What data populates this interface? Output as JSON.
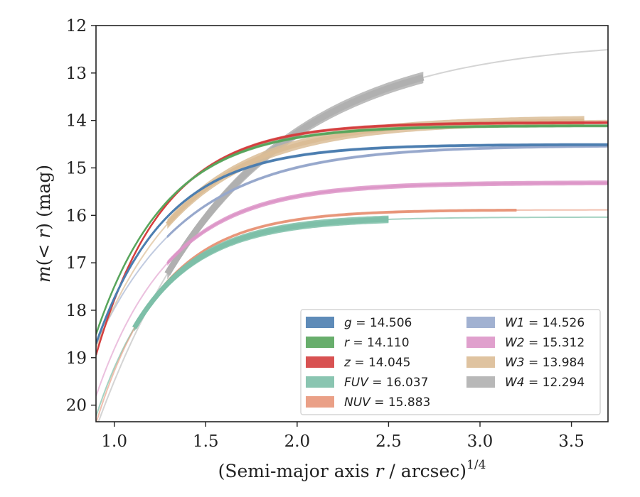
{
  "chart_data": {
    "type": "line",
    "xlabel_main": "(Semi-major axis ",
    "xlabel_var": "r",
    "xlabel_rest": " / arcsec)",
    "xlabel_sup": "1/4",
    "ylabel_main": "m",
    "ylabel_paren": "(< ",
    "ylabel_var": "r",
    "ylabel_rest": ") (mag)",
    "xlim": [
      0.9,
      3.7
    ],
    "ylim": [
      20.35,
      12.0
    ],
    "y_inverted": true,
    "grid": false,
    "legend_position": "lower-right",
    "x_ticks": [
      {
        "v": 1.0,
        "label": "1.0"
      },
      {
        "v": 1.5,
        "label": "1.5"
      },
      {
        "v": 2.0,
        "label": "2.0"
      },
      {
        "v": 2.5,
        "label": "2.5"
      },
      {
        "v": 3.0,
        "label": "3.0"
      },
      {
        "v": 3.5,
        "label": "3.5"
      }
    ],
    "y_ticks": [
      {
        "v": 12,
        "label": "12"
      },
      {
        "v": 13,
        "label": "13"
      },
      {
        "v": 14,
        "label": "14"
      },
      {
        "v": 15,
        "label": "15"
      },
      {
        "v": 16,
        "label": "16"
      },
      {
        "v": 17,
        "label": "17"
      },
      {
        "v": 18,
        "label": "18"
      },
      {
        "v": 19,
        "label": "19"
      },
      {
        "v": 20,
        "label": "20"
      }
    ],
    "series": [
      {
        "key": "g",
        "legend_var": "g",
        "legend_value": " = 14.506",
        "color": "#4c7eb0",
        "data_width": 3,
        "model_width": 2,
        "data_xmax": 3.7,
        "data_band": 0.03,
        "model_opacity": 0.4,
        "asym": 14.506,
        "A": 4.2,
        "k": 2.6
      },
      {
        "key": "r",
        "legend_var": "r",
        "legend_value": " = 14.110",
        "color": "#58a55c",
        "data_width": 2.5,
        "model_width": 2,
        "data_xmax": 3.7,
        "data_band": 0.03,
        "model_opacity": 0.4,
        "asym": 14.11,
        "A": 4.4,
        "k": 2.6
      },
      {
        "key": "z",
        "legend_var": "z",
        "legend_value": " = 14.045",
        "color": "#d43f3f",
        "data_width": 2.5,
        "model_width": 2,
        "data_xmax": 3.7,
        "data_band": 0.03,
        "model_opacity": 0.4,
        "asym": 14.045,
        "A": 4.9,
        "k": 2.7
      },
      {
        "key": "FUV",
        "legend_var": "FUV",
        "legend_value": " = 16.037",
        "color": "#7dbfa8",
        "data_width": 7,
        "model_width": 2,
        "data_xmin": 1.11,
        "data_xmax": 2.5,
        "data_band": 0.08,
        "model_opacity": 0.7,
        "asym": 16.037,
        "A": 4.2,
        "k": 2.8
      },
      {
        "key": "NUV",
        "legend_var": "NUV",
        "legend_value": " = 15.883",
        "color": "#e8967a",
        "data_width": 3,
        "model_width": 2,
        "data_xmin": 1.11,
        "data_xmax": 3.2,
        "data_band": 0.03,
        "model_opacity": 0.6,
        "asym": 15.883,
        "A": 4.5,
        "k": 2.8
      },
      {
        "key": "W1",
        "legend_var": "W1",
        "legend_value": " = 14.526",
        "color": "#97a8cc",
        "data_width": 3,
        "model_width": 2,
        "data_xmin": 1.29,
        "data_xmax": 3.7,
        "data_band": 0.03,
        "model_opacity": 0.6,
        "asym": 14.526,
        "A": 4.2,
        "k": 2.0
      },
      {
        "key": "W2",
        "legend_var": "W2",
        "legend_value": " = 15.312",
        "color": "#dd96c8",
        "data_width": 3,
        "model_width": 2,
        "data_xmin": 1.29,
        "data_xmax": 3.7,
        "data_band": 0.05,
        "model_opacity": 0.6,
        "asym": 15.312,
        "A": 4.5,
        "k": 2.5
      },
      {
        "key": "W3",
        "legend_var": "W3",
        "legend_value": " = 13.984",
        "color": "#dbbd96",
        "data_width": 6,
        "model_width": 2,
        "data_xmin": 1.29,
        "data_xmax": 3.57,
        "data_band": 0.1,
        "model_opacity": 0.7,
        "asym": 13.984,
        "A": 4.8,
        "k": 2.0
      },
      {
        "key": "W4",
        "legend_var": "W4",
        "legend_value": " = 12.294",
        "color": "#b0b0b0",
        "data_width": 9,
        "model_width": 2,
        "data_xmin": 1.29,
        "data_xmax": 2.69,
        "data_band": 0.12,
        "model_opacity": 0.55,
        "asym": 12.294,
        "A": 8.2,
        "k": 1.3
      }
    ]
  }
}
